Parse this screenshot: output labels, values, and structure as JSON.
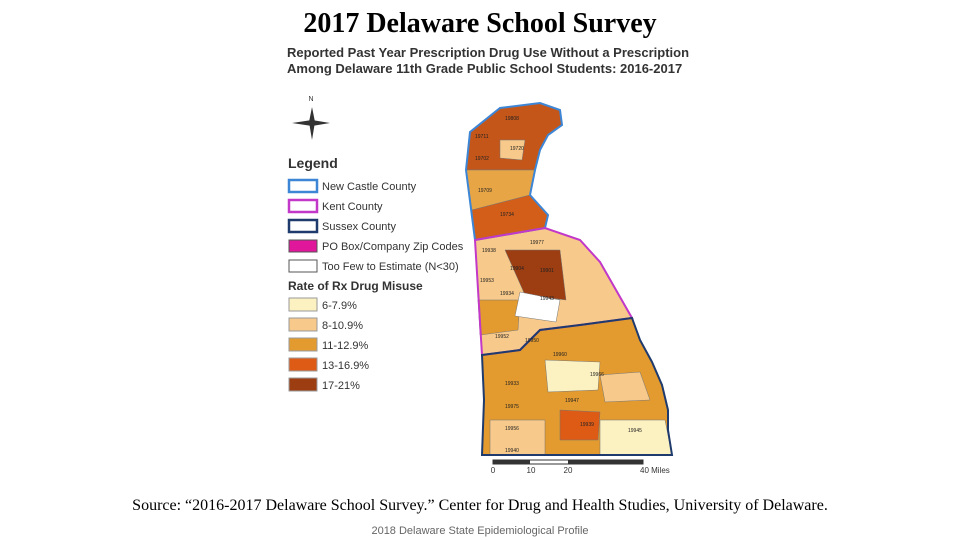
{
  "title": "2017 Delaware School Survey",
  "map": {
    "heading": [
      "Reported Past Year Prescription Drug Use Without a Prescription",
      "Among Delaware 11th Grade Public School Students: 2016-2017"
    ],
    "north": "N",
    "legend": {
      "title": "Legend",
      "items": [
        "New Castle County",
        "Kent County",
        "Sussex County",
        "PO Box/Company Zip Codes",
        "Too Few to Estimate (N<30)"
      ],
      "rate_title": "Rate of Rx Drug Misuse",
      "rates": [
        "6-7.9%",
        "8-10.9%",
        "11-12.9%",
        "13-16.9%",
        "17-21%"
      ]
    },
    "scale": [
      0,
      10,
      20,
      "40 Miles"
    ],
    "zip_labels": [
      "19808",
      "19711",
      "19720",
      "19702",
      "19709",
      "19734",
      "19977",
      "19938",
      "19904",
      "19901",
      "19953",
      "19934",
      "19943",
      "19952",
      "19950",
      "19960",
      "19966",
      "19933",
      "19947",
      "19975",
      "19956",
      "19940",
      "19939",
      "19945"
    ]
  },
  "source": "Source: “2016-2017 Delaware School Survey.” Center for Drug and Health Studies, University of Delaware.",
  "footer": "2018 Delaware State Epidemiological Profile"
}
